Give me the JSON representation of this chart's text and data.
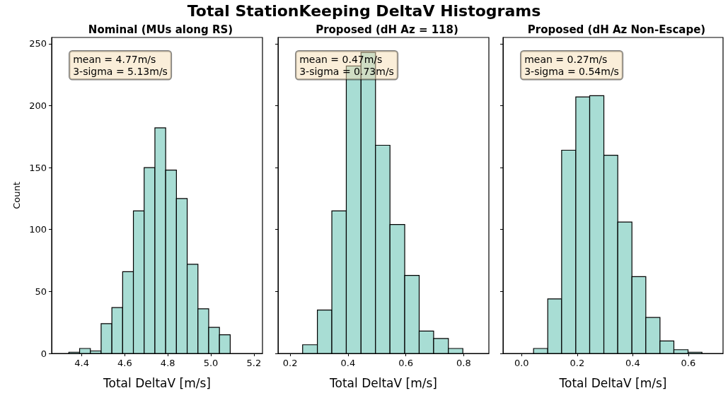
{
  "chart_data": [
    {
      "type": "histogram",
      "title": "Nominal (MUs along RS)",
      "xlabel": "Total DeltaV [m/s]",
      "ylabel": "Count",
      "color": "#a8ddd4",
      "bins": [
        4.34,
        4.39,
        4.44,
        4.49,
        4.54,
        4.59,
        4.64,
        4.69,
        4.74,
        4.79,
        4.84,
        4.89,
        4.94,
        4.99,
        5.04,
        5.09
      ],
      "values": [
        1,
        4,
        2,
        24,
        37,
        66,
        115,
        150,
        182,
        148,
        125,
        72,
        36,
        21,
        15
      ],
      "xlim": [
        4.26,
        5.24
      ],
      "xticks": [
        4.4,
        4.6,
        4.8,
        {
          "value": 5.0,
          "label": "5.0"
        },
        5.2
      ],
      "ylim": [
        0,
        255
      ],
      "yticks": [
        0,
        50,
        100,
        150,
        200,
        250
      ],
      "annotations": [
        "Total StationKeeping DeltaV Histograms",
        "mean = 4.77m/s\n3-sigma = 5.13m/s"
      ],
      "grid": false
    },
    {
      "type": "histogram",
      "title": "Proposed (dH Az = 118)",
      "xlabel": "Total DeltaV [m/s]",
      "color": "#a8ddd4",
      "bins": [
        0.243,
        0.294,
        0.344,
        0.394,
        0.445,
        0.495,
        0.545,
        0.596,
        0.646,
        0.696,
        0.747,
        0.797
      ],
      "values": [
        7,
        35,
        115,
        232,
        243,
        168,
        104,
        63,
        18,
        12,
        4
      ],
      "xlim": [
        0.158,
        0.887
      ],
      "xticks": [
        0.2,
        0.4,
        0.6,
        0.8
      ],
      "ylim": [
        0,
        255
      ],
      "yticks": [
        0,
        50,
        100,
        150,
        200,
        250
      ],
      "tick_labels": "x",
      "annotations": [
        "mean = 0.47m/s\n3-sigma = 0.73m/s"
      ],
      "grid": false
    },
    {
      "type": "histogram",
      "title": "Proposed (dH Az Non-Escape)",
      "xlabel": "Total DeltaV [m/s]",
      "color": "#a8ddd4",
      "bins": [
        0.043,
        0.094,
        0.144,
        0.195,
        0.245,
        0.296,
        0.346,
        0.397,
        0.447,
        0.498,
        0.548,
        0.599,
        0.649
      ],
      "values": [
        4,
        44,
        164,
        207,
        208,
        160,
        106,
        62,
        29,
        10,
        3,
        1
      ],
      "xlim": [
        -0.067,
        0.725
      ],
      "xticks": [
        {
          "value": 0,
          "label": "0.0"
        },
        0.2,
        0.4,
        0.6
      ],
      "ylim": [
        0,
        255
      ],
      "yticks": [
        0,
        50,
        100,
        150,
        200,
        250
      ],
      "tick_labels": "x",
      "annotations": [
        "mean = 0.27m/s\n3-sigma = 0.54m/s"
      ],
      "grid": false
    }
  ]
}
